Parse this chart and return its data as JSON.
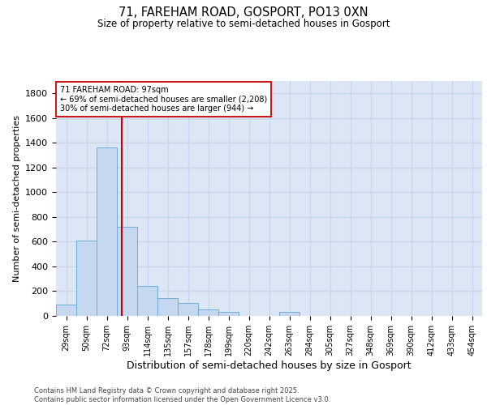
{
  "title_line1": "71, FAREHAM ROAD, GOSPORT, PO13 0XN",
  "title_line2": "Size of property relative to semi-detached houses in Gosport",
  "xlabel": "Distribution of semi-detached houses by size in Gosport",
  "ylabel": "Number of semi-detached properties",
  "categories": [
    "29sqm",
    "50sqm",
    "72sqm",
    "93sqm",
    "114sqm",
    "135sqm",
    "157sqm",
    "178sqm",
    "199sqm",
    "220sqm",
    "242sqm",
    "263sqm",
    "284sqm",
    "305sqm",
    "327sqm",
    "348sqm",
    "369sqm",
    "390sqm",
    "412sqm",
    "433sqm",
    "454sqm"
  ],
  "values": [
    90,
    610,
    1360,
    720,
    245,
    145,
    105,
    55,
    35,
    0,
    0,
    30,
    0,
    0,
    0,
    0,
    0,
    0,
    0,
    0,
    0
  ],
  "bar_color": "#c5d8f0",
  "bar_edge_color": "#6baed6",
  "grid_color": "#c8d4e8",
  "background_color": "#dce6f5",
  "vline_color": "#cc0000",
  "annotation_line1": "71 FAREHAM ROAD: 97sqm",
  "annotation_line2": "← 69% of semi-detached houses are smaller (2,208)",
  "annotation_line3": "30% of semi-detached houses are larger (944) →",
  "annotation_box_color": "#cc0000",
  "ylim": [
    0,
    1900
  ],
  "yticks": [
    0,
    200,
    400,
    600,
    800,
    1000,
    1200,
    1400,
    1600,
    1800
  ],
  "footer": "Contains HM Land Registry data © Crown copyright and database right 2025.\nContains public sector information licensed under the Open Government Licence v3.0.",
  "vline_position": 2.75
}
